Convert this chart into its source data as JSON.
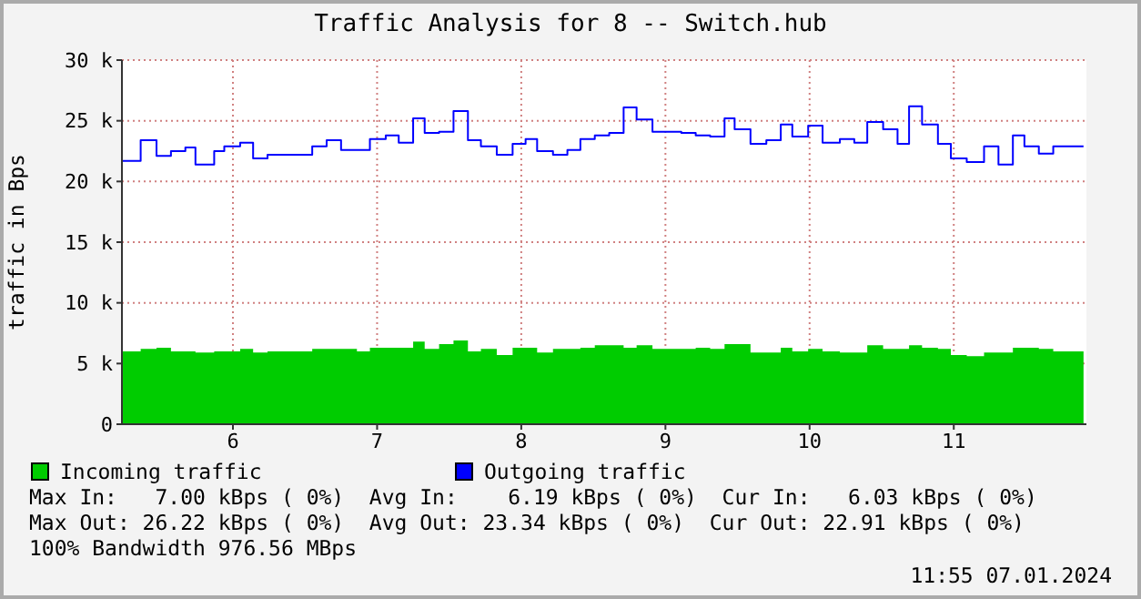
{
  "chart_data": {
    "type": "step",
    "title": "Traffic Analysis for 8 -- Switch.hub",
    "ylabel": "traffic in Bps",
    "x": [
      5.23,
      5.36,
      5.47,
      5.57,
      5.67,
      5.74,
      5.87,
      5.94,
      6.05,
      6.14,
      6.24,
      6.55,
      6.65,
      6.75,
      6.86,
      6.95,
      7.06,
      7.15,
      7.25,
      7.33,
      7.43,
      7.53,
      7.63,
      7.72,
      7.83,
      7.94,
      8.03,
      8.11,
      8.22,
      8.32,
      8.41,
      8.51,
      8.61,
      8.71,
      8.8,
      8.91,
      9.11,
      9.21,
      9.31,
      9.41,
      9.48,
      9.59,
      9.7,
      9.8,
      9.88,
      9.99,
      10.09,
      10.21,
      10.31,
      10.4,
      10.51,
      10.61,
      10.69,
      10.78,
      10.89,
      10.98,
      11.09,
      11.21,
      11.31,
      11.41,
      11.49,
      11.59,
      11.69,
      11.9
    ],
    "series": [
      {
        "name": "Incoming traffic",
        "type": "area",
        "color": "#00cc00",
        "values": [
          6000,
          6200,
          6300,
          6000,
          6000,
          5900,
          6000,
          6000,
          6200,
          5900,
          6000,
          6200,
          6200,
          6200,
          6000,
          6300,
          6300,
          6300,
          6800,
          6200,
          6600,
          6900,
          6000,
          6200,
          5700,
          6300,
          6300,
          5900,
          6200,
          6200,
          6300,
          6500,
          6500,
          6300,
          6500,
          6200,
          6200,
          6300,
          6200,
          6600,
          6600,
          5900,
          5900,
          6300,
          6000,
          6200,
          6000,
          5900,
          5900,
          6500,
          6200,
          6200,
          6500,
          6300,
          6200,
          5700,
          5600,
          5900,
          5900,
          6300,
          6300,
          6200,
          6000,
          6000
        ]
      },
      {
        "name": "Outgoing traffic",
        "type": "step",
        "color": "#0000ff",
        "values": [
          21700,
          23400,
          22100,
          22500,
          22800,
          21400,
          22500,
          22900,
          23200,
          21900,
          22200,
          22900,
          23400,
          22600,
          22600,
          23500,
          23800,
          23200,
          25200,
          24000,
          24100,
          25800,
          23400,
          22900,
          22200,
          23100,
          23500,
          22500,
          22200,
          22600,
          23500,
          23800,
          24000,
          26100,
          25100,
          24100,
          24000,
          23800,
          23700,
          25200,
          24300,
          23100,
          23400,
          24700,
          23700,
          24600,
          23200,
          23500,
          23200,
          24900,
          24300,
          23100,
          26200,
          24700,
          23100,
          21900,
          21600,
          22900,
          21400,
          23800,
          22900,
          22300,
          22900,
          22900
        ]
      }
    ],
    "xlim": [
      5.23,
      11.92
    ],
    "xticks": [
      6,
      7,
      8,
      9,
      10,
      11
    ],
    "ylim": [
      0,
      30000
    ],
    "yticks": [
      {
        "value": 0,
        "label": "0"
      },
      {
        "value": 5000,
        "label": "5 k"
      },
      {
        "value": 10000,
        "label": "10 k"
      },
      {
        "value": 15000,
        "label": "15 k"
      },
      {
        "value": 20000,
        "label": "20 k"
      },
      {
        "value": 25000,
        "label": "25 k"
      },
      {
        "value": 30000,
        "label": "30 k"
      }
    ],
    "grid": true,
    "legend": "bottom",
    "annotations": [
      "Max In:   7.00 kBps ( 0%)  Avg In:    6.19 kBps ( 0%)  Cur In:   6.03 kBps ( 0%)",
      "Max Out: 26.22 kBps ( 0%)  Avg Out: 23.34 kBps ( 0%)  Cur Out: 22.91 kBps ( 0%)",
      "100% Bandwidth 976.56 MBps",
      "11:55 07.01.2024"
    ]
  }
}
